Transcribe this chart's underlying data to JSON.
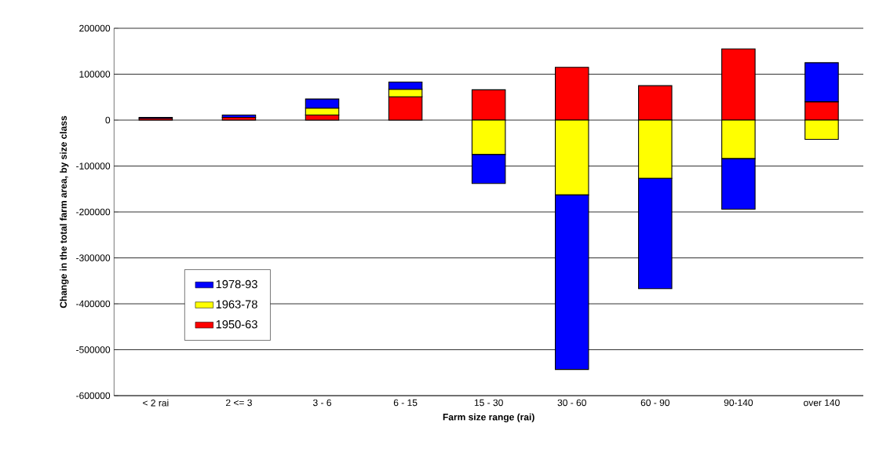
{
  "chart_data": {
    "type": "bar",
    "stacked": true,
    "xlabel": "Farm size range (rai)",
    "ylabel": "Change in the total farm area, by size class",
    "categories": [
      "< 2 rai",
      "2 <= 3",
      "3 - 6",
      "6 - 15",
      "15 - 30",
      "30 - 60",
      "60 - 90",
      "90-140",
      "over 140"
    ],
    "series": [
      {
        "name": "1950-63",
        "color": "#ff0000",
        "values": [
          4000,
          6000,
          11000,
          51000,
          66000,
          115000,
          75000,
          155000,
          40000
        ]
      },
      {
        "name": "1963-78",
        "color": "#ffff00",
        "values": [
          null,
          null,
          15000,
          16000,
          -75000,
          -163000,
          -127000,
          -84000,
          -42000
        ]
      },
      {
        "name": "1978-93",
        "color": "#0000ff",
        "values": [
          2000,
          5000,
          20000,
          16000,
          -63000,
          -380000,
          -240000,
          -110000,
          85000
        ]
      }
    ],
    "ylim": [
      -600000,
      200000
    ],
    "yticks": [
      -600000,
      -500000,
      -400000,
      -300000,
      -200000,
      -100000,
      0,
      100000,
      200000
    ],
    "grid": "y",
    "legend": "bottom left"
  }
}
